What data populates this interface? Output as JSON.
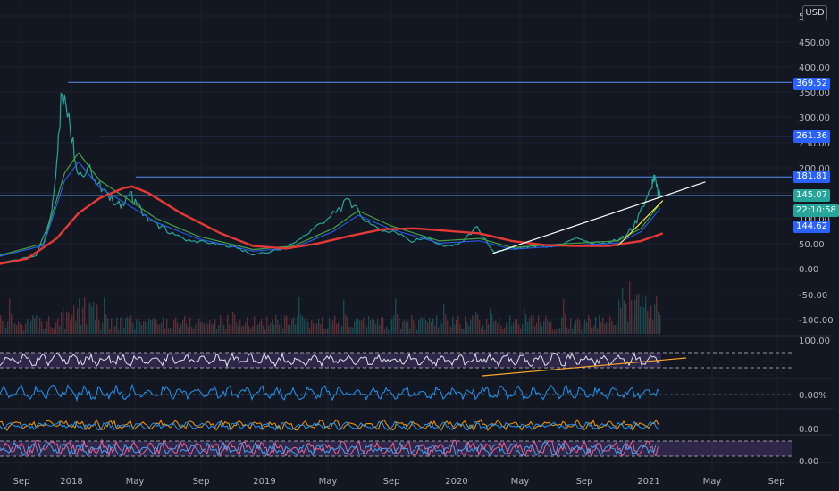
{
  "currency": "USD",
  "price_labels": [
    {
      "value": "369.52",
      "color": "#2962ff"
    },
    {
      "value": "261.36",
      "color": "#2962ff"
    },
    {
      "value": "181.81",
      "color": "#2962ff"
    },
    {
      "value": "145.07",
      "color": "#26a69a"
    },
    {
      "value": "22:10:58",
      "color": "#26a69a"
    },
    {
      "value": "144.62",
      "color": "#2962ff"
    }
  ],
  "chart_data": {
    "type": "line",
    "x_ticks": [
      "Sep",
      "2018",
      "May",
      "Sep",
      "2019",
      "May",
      "Sep",
      "2020",
      "May",
      "Sep",
      "2021",
      "May",
      "Sep"
    ],
    "price_ticks": [
      "5(",
      "450.00",
      "400.00",
      "350.00",
      "300.00",
      "250.00",
      "200.00",
      "150.00",
      "100.00",
      "50.00",
      "0.00",
      "-50.00",
      "-100.00"
    ],
    "rsi_ticks": [
      "100.00"
    ],
    "osc_ticks": [
      "0.00%"
    ],
    "macd_ticks": [
      "0.00"
    ],
    "stoch_ticks": [
      "0.00"
    ],
    "horizontal_levels": [
      369.52,
      261.36,
      181.81,
      145.07
    ],
    "current_price": 144.62,
    "price_series": [
      [
        "2017-08-01",
        10
      ],
      [
        "2017-09-15",
        15
      ],
      [
        "2017-11-01",
        25
      ],
      [
        "2017-12-01",
        110
      ],
      [
        "2017-12-12",
        230
      ],
      [
        "2017-12-20",
        355
      ],
      [
        "2018-01-05",
        280
      ],
      [
        "2018-01-20",
        190
      ],
      [
        "2018-02-10",
        200
      ],
      [
        "2018-03-01",
        165
      ],
      [
        "2018-03-20",
        140
      ],
      [
        "2018-04-10",
        125
      ],
      [
        "2018-04-25",
        150
      ],
      [
        "2018-05-10",
        130
      ],
      [
        "2018-06-01",
        95
      ],
      [
        "2018-07-01",
        80
      ],
      [
        "2018-08-01",
        60
      ],
      [
        "2018-09-01",
        55
      ],
      [
        "2018-10-01",
        48
      ],
      [
        "2018-11-10",
        45
      ],
      [
        "2018-12-10",
        28
      ],
      [
        "2019-01-10",
        32
      ],
      [
        "2019-02-10",
        40
      ],
      [
        "2019-03-10",
        55
      ],
      [
        "2019-04-10",
        80
      ],
      [
        "2019-05-15",
        110
      ],
      [
        "2019-06-15",
        135
      ],
      [
        "2019-07-10",
        100
      ],
      [
        "2019-08-10",
        80
      ],
      [
        "2019-09-10",
        70
      ],
      [
        "2019-10-10",
        55
      ],
      [
        "2019-11-10",
        60
      ],
      [
        "2019-12-10",
        42
      ],
      [
        "2020-01-10",
        50
      ],
      [
        "2020-02-10",
        80
      ],
      [
        "2020-03-13",
        32
      ],
      [
        "2020-04-10",
        40
      ],
      [
        "2020-05-10",
        42
      ],
      [
        "2020-06-10",
        46
      ],
      [
        "2020-07-10",
        45
      ],
      [
        "2020-08-10",
        62
      ],
      [
        "2020-09-10",
        52
      ],
      [
        "2020-10-10",
        50
      ],
      [
        "2020-11-10",
        62
      ],
      [
        "2020-12-01",
        85
      ],
      [
        "2020-12-20",
        120
      ],
      [
        "2021-01-05",
        165
      ],
      [
        "2021-01-10",
        180
      ],
      [
        "2021-01-15",
        155
      ],
      [
        "2021-01-20",
        145
      ]
    ],
    "ma_fast": [
      [
        "2017-08-01",
        20
      ],
      [
        "2017-11-15",
        50
      ],
      [
        "2017-12-25",
        190
      ],
      [
        "2018-01-20",
        230
      ],
      [
        "2018-03-01",
        175
      ],
      [
        "2018-04-20",
        140
      ],
      [
        "2018-06-15",
        100
      ],
      [
        "2018-09-01",
        65
      ],
      [
        "2018-12-15",
        38
      ],
      [
        "2019-03-01",
        45
      ],
      [
        "2019-05-15",
        80
      ],
      [
        "2019-07-01",
        115
      ],
      [
        "2019-09-01",
        85
      ],
      [
        "2019-12-01",
        55
      ],
      [
        "2020-02-15",
        60
      ],
      [
        "2020-04-15",
        42
      ],
      [
        "2020-08-01",
        50
      ],
      [
        "2020-11-01",
        55
      ],
      [
        "2020-12-15",
        80
      ],
      [
        "2021-01-20",
        130
      ]
    ],
    "ma_slow": [
      [
        "2017-08-01",
        5
      ],
      [
        "2017-10-15",
        20
      ],
      [
        "2017-12-10",
        60
      ],
      [
        "2018-01-20",
        110
      ],
      [
        "2018-03-01",
        140
      ],
      [
        "2018-04-15",
        160
      ],
      [
        "2018-05-01",
        163
      ],
      [
        "2018-06-01",
        150
      ],
      [
        "2018-08-01",
        110
      ],
      [
        "2018-10-15",
        70
      ],
      [
        "2018-12-15",
        45
      ],
      [
        "2019-02-15",
        40
      ],
      [
        "2019-04-15",
        50
      ],
      [
        "2019-06-15",
        65
      ],
      [
        "2019-08-15",
        78
      ],
      [
        "2019-10-15",
        80
      ],
      [
        "2019-12-15",
        75
      ],
      [
        "2020-02-15",
        70
      ],
      [
        "2020-04-15",
        55
      ],
      [
        "2020-06-15",
        47
      ],
      [
        "2020-08-15",
        45
      ],
      [
        "2020-10-15",
        45
      ],
      [
        "2020-12-15",
        55
      ],
      [
        "2021-01-25",
        70
      ]
    ],
    "trendlines": [
      {
        "color": "#ffffff",
        "points": [
          [
            "2020-03-10",
            30
          ],
          [
            "2021-04-15",
            172
          ]
        ]
      },
      {
        "color": "#ffeb3b",
        "points": [
          [
            "2020-11-01",
            45
          ],
          [
            "2021-01-25",
            135
          ]
        ]
      }
    ]
  }
}
